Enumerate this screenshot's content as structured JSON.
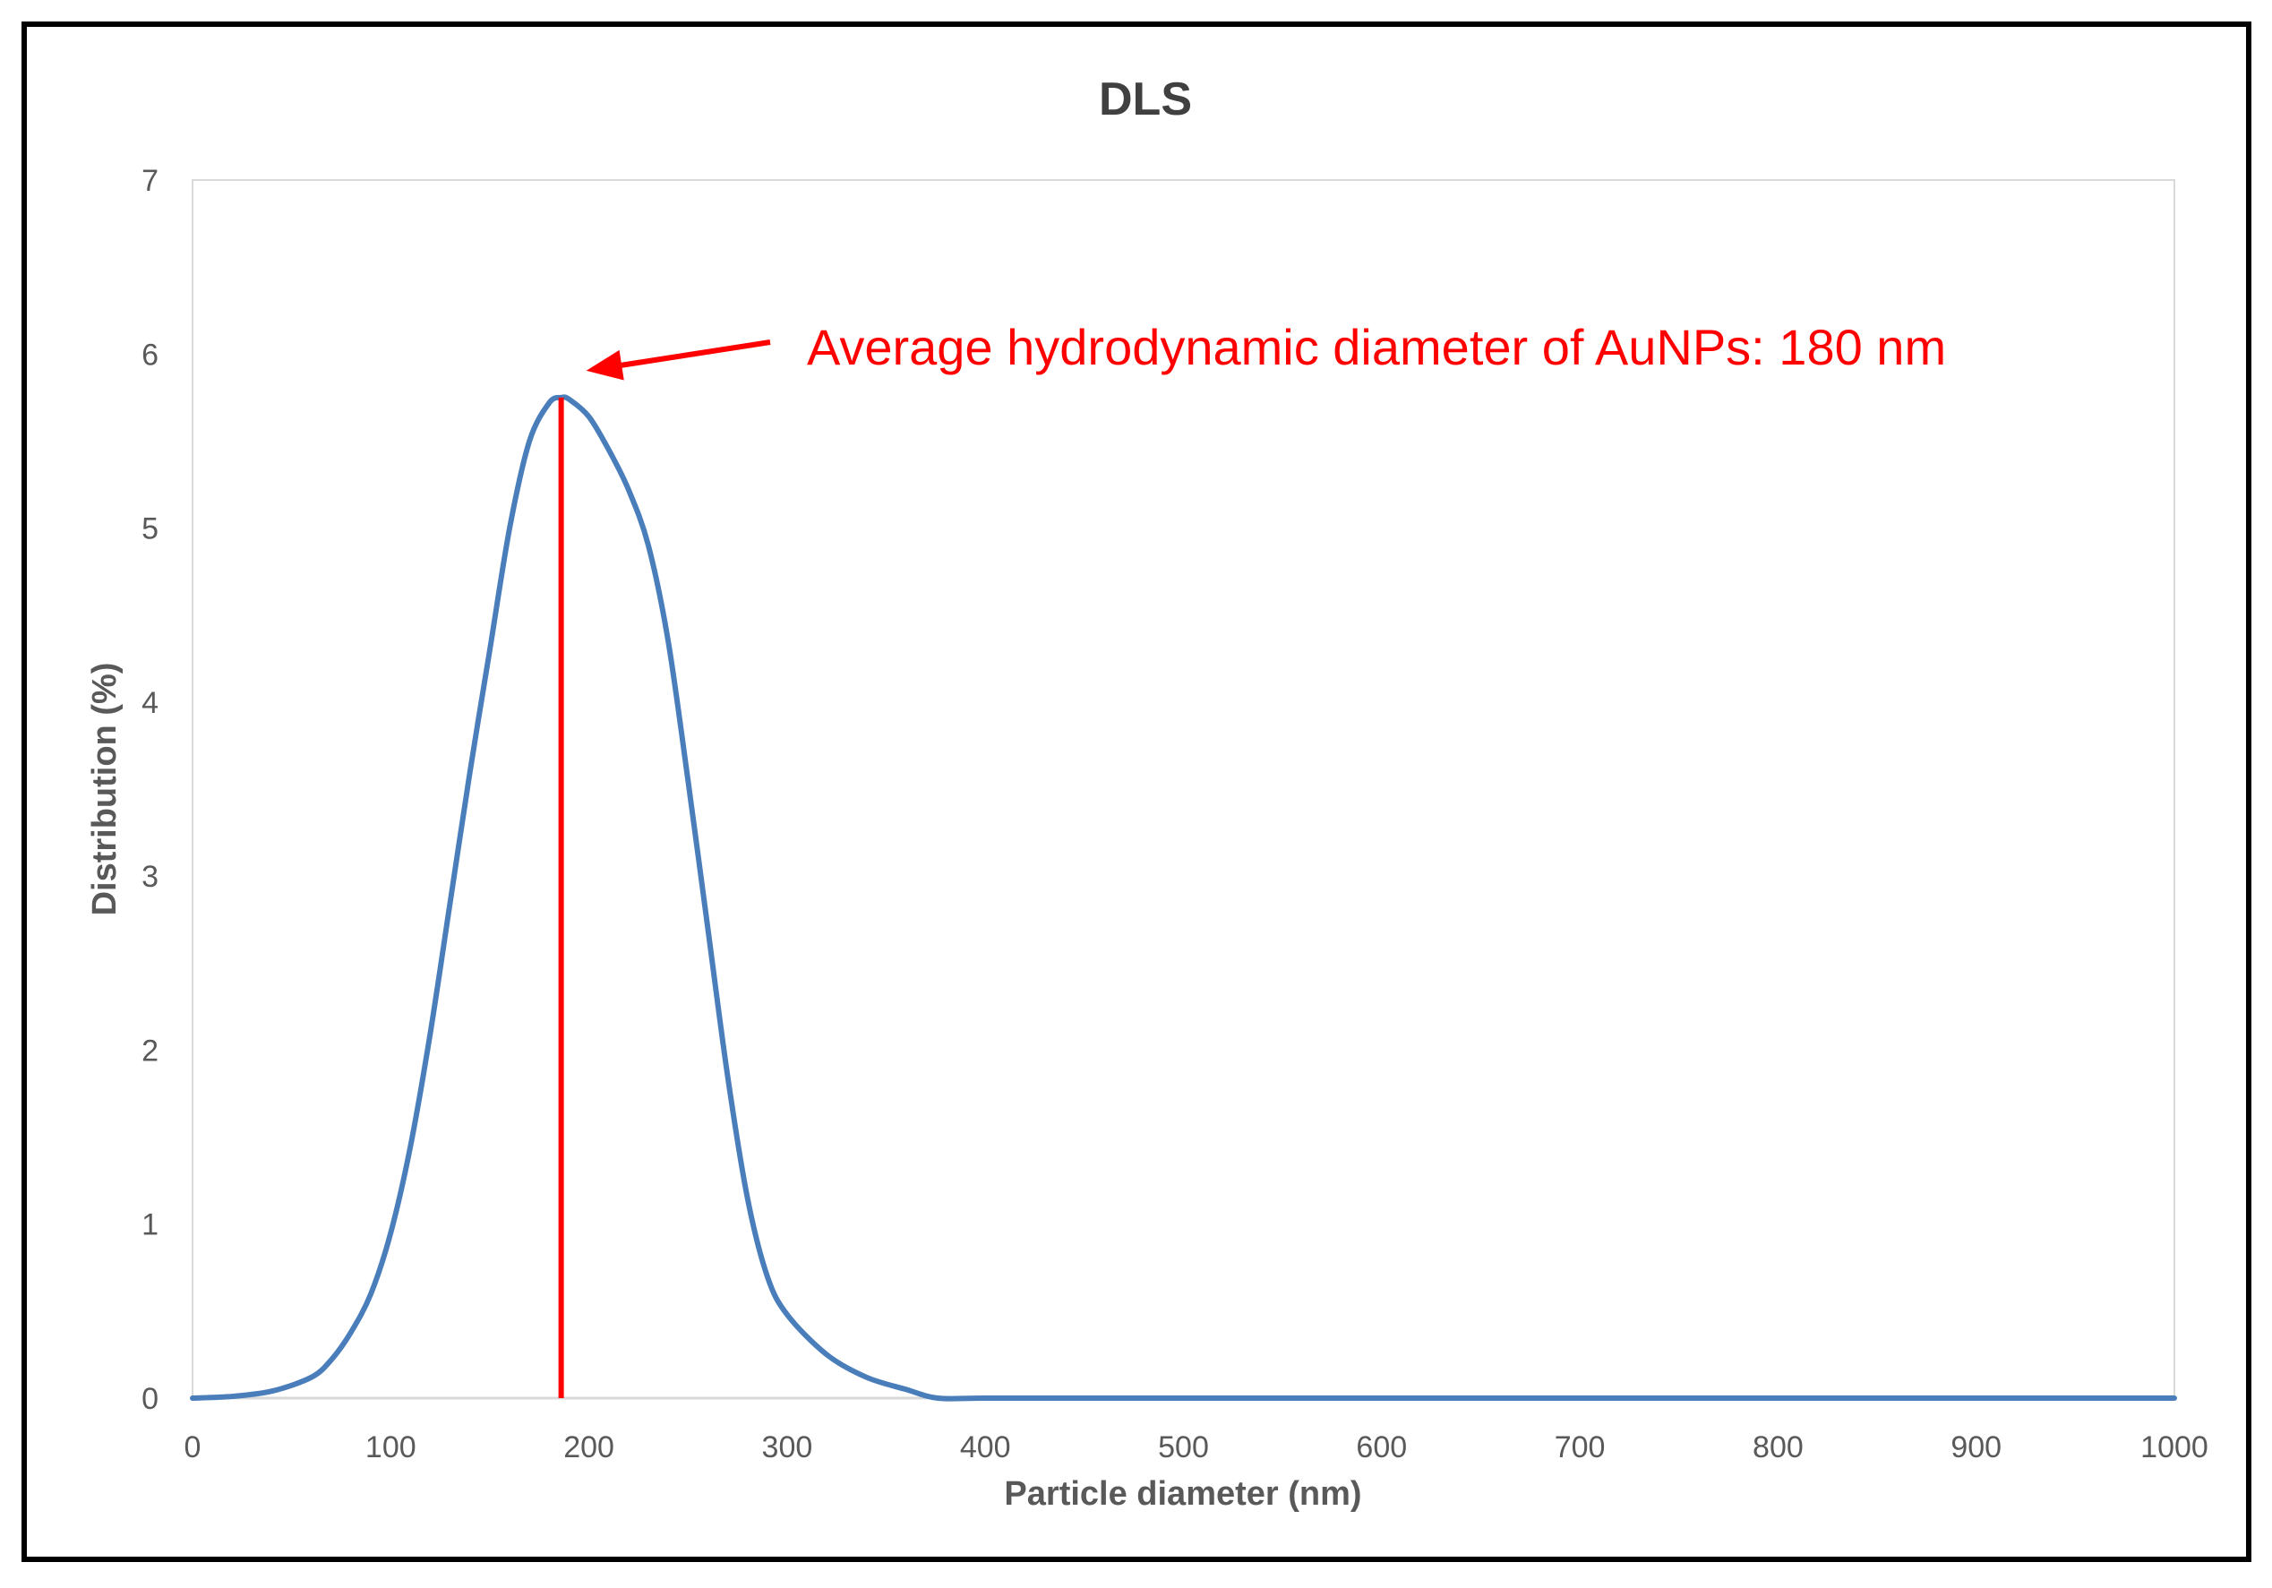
{
  "chart_data": {
    "type": "line",
    "title": "DLS",
    "xlabel": "Particle diameter (nm)",
    "ylabel": "Distribution (%)",
    "xlim": [
      0,
      1000
    ],
    "ylim": [
      0,
      7
    ],
    "x_ticks": [
      "0",
      "100",
      "200",
      "300",
      "400",
      "500",
      "600",
      "700",
      "800",
      "900",
      "1000"
    ],
    "y_ticks": [
      "0",
      "1",
      "2",
      "3",
      "4",
      "5",
      "6",
      "7"
    ],
    "grid": false,
    "legend": "none",
    "series": [
      {
        "color": "#4a7ebb",
        "x": [
          0,
          20,
          40,
          60,
          70,
          80,
          90,
          100,
          110,
          120,
          130,
          140,
          150,
          160,
          170,
          180,
          186,
          190,
          200,
          210,
          220,
          230,
          240,
          250,
          260,
          270,
          280,
          290,
          300,
          320,
          340,
          360,
          376,
          400,
          450,
          500,
          600,
          700,
          800,
          900,
          1000
        ],
        "y": [
          0,
          0.01,
          0.04,
          0.12,
          0.22,
          0.38,
          0.6,
          0.95,
          1.45,
          2.1,
          2.85,
          3.6,
          4.3,
          5.0,
          5.5,
          5.72,
          5.75,
          5.74,
          5.64,
          5.45,
          5.22,
          4.9,
          4.35,
          3.55,
          2.7,
          1.85,
          1.15,
          0.7,
          0.48,
          0.25,
          0.12,
          0.05,
          0,
          0,
          0,
          0,
          0,
          0,
          0,
          0,
          0
        ]
      }
    ],
    "annotations": [
      {
        "text": "Average hydrodynamic diameter of AuNPs: 180 nm",
        "color": "#ff0000",
        "marker_x": 186,
        "marker_y_top": 5.75
      }
    ]
  }
}
